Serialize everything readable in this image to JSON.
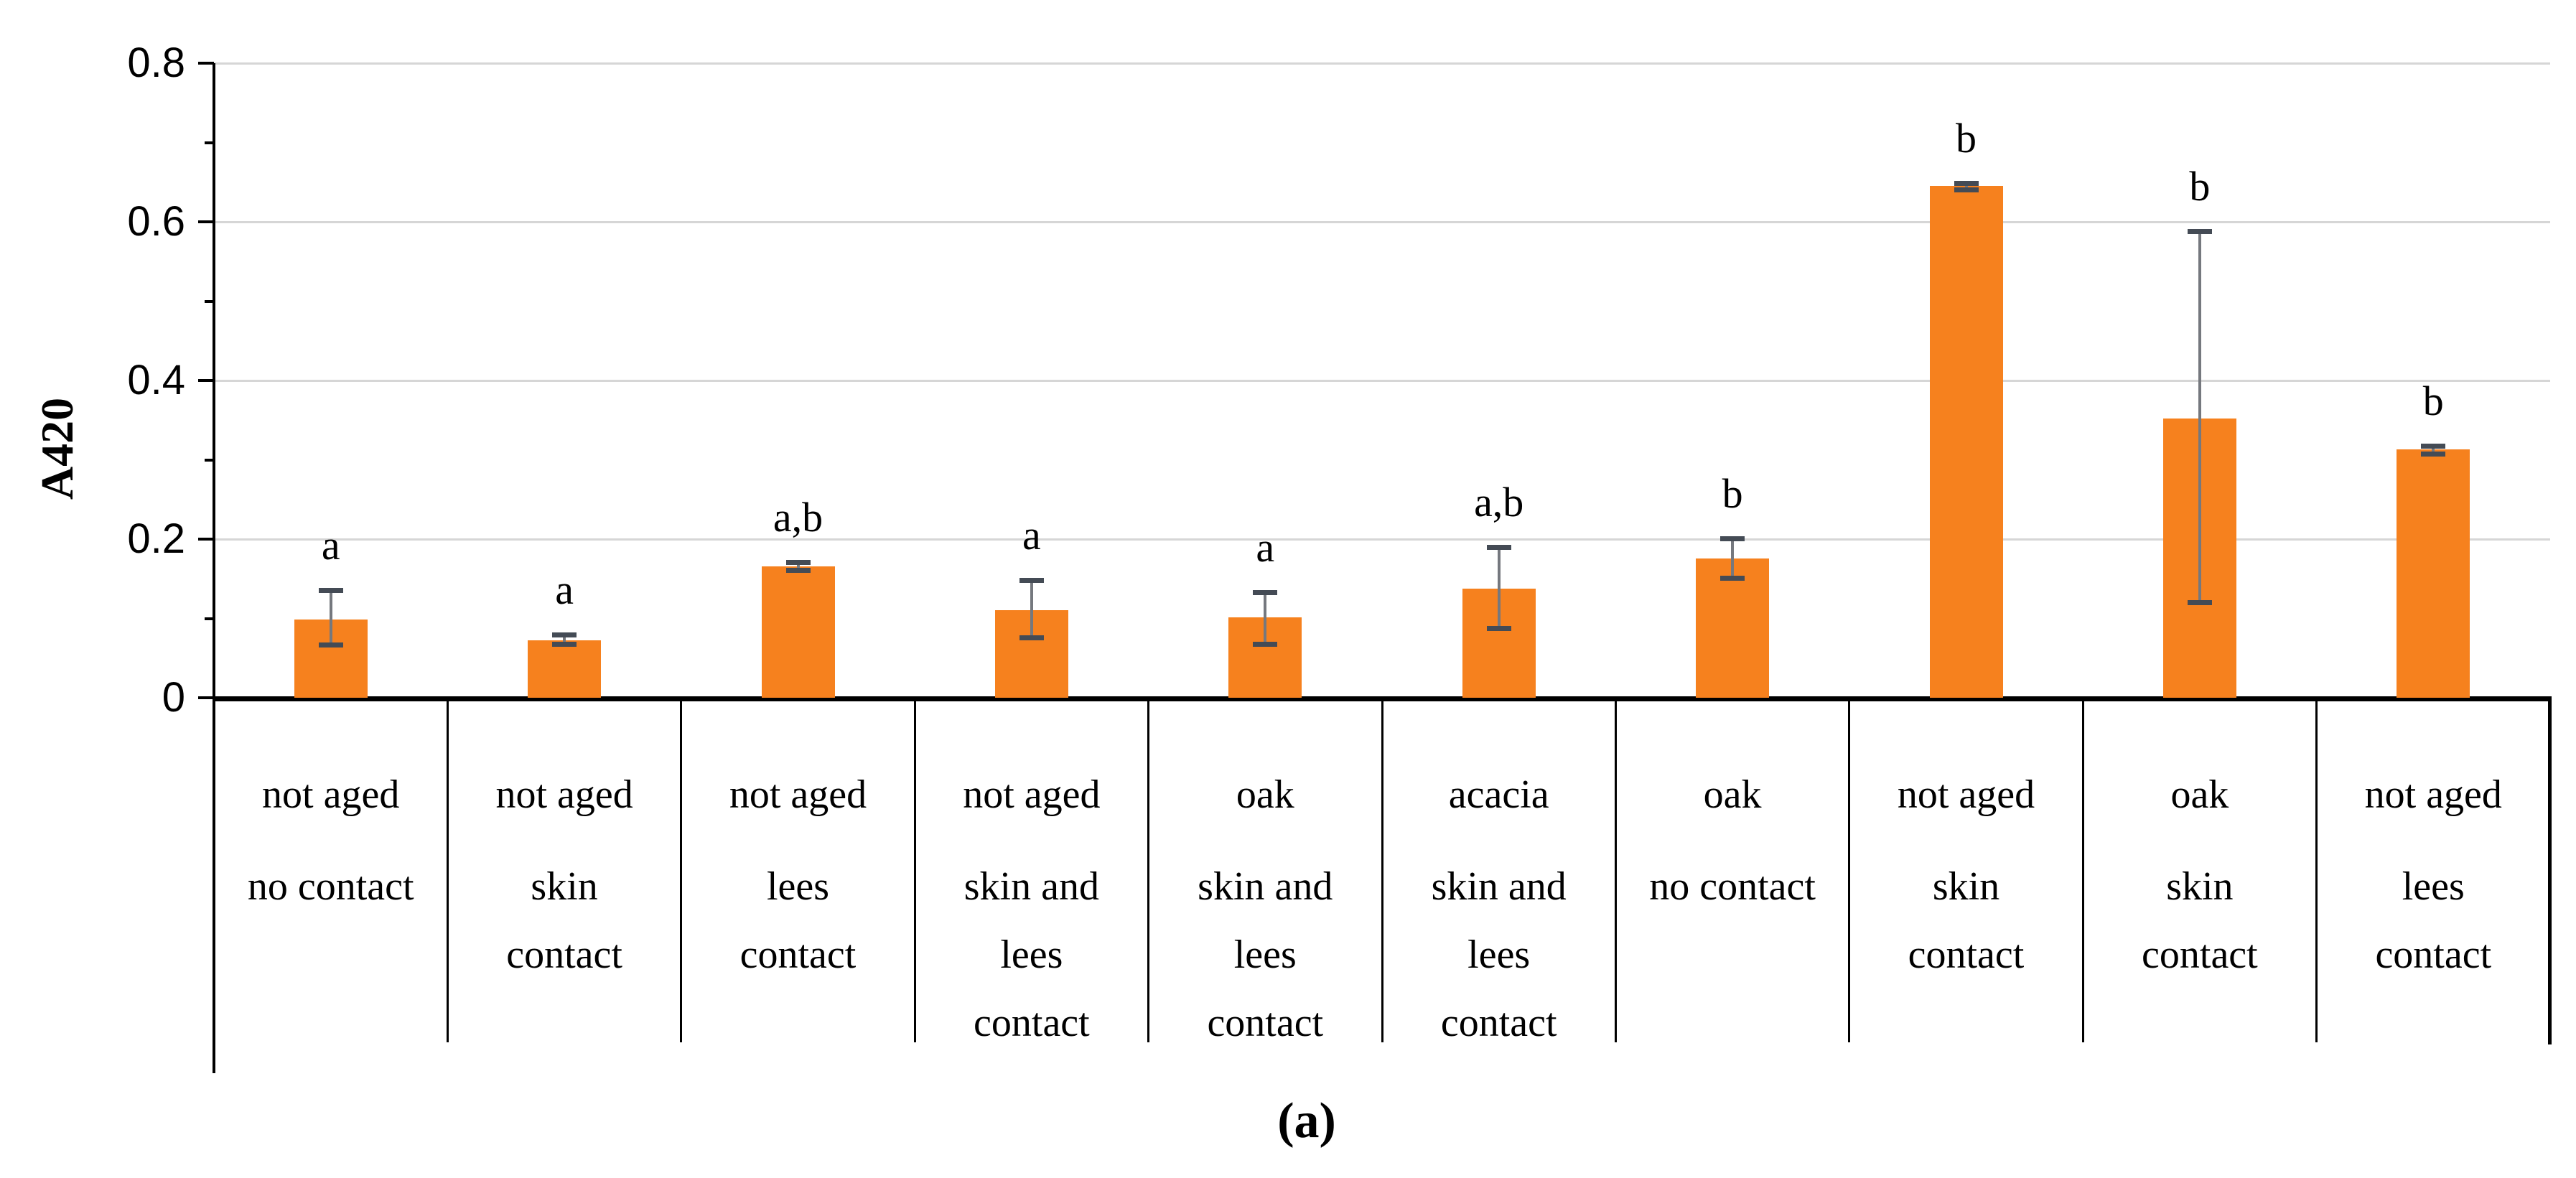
{
  "figure": {
    "caption": "(a)",
    "background": "#ffffff"
  },
  "chart_data": {
    "type": "bar",
    "title": "",
    "xlabel": "",
    "ylabel": "A420",
    "ylim": [
      0,
      0.8
    ],
    "yticks": [
      0,
      0.2,
      0.4,
      0.6,
      0.8
    ],
    "ytick_labels": [
      "0",
      "0.2",
      "0.4",
      "0.6",
      "0.8"
    ],
    "minor_tick_interval": 0.1,
    "grid": "horizontal-major",
    "legend": null,
    "bar_color": "#F6811E",
    "error_line_color": "#75787E",
    "error_cap_color": "#444B55",
    "gridline_color": "#D6D6D6",
    "categories": [
      {
        "aging": "not aged",
        "contact": "no contact",
        "contact_lines": [
          "no contact"
        ],
        "value": 0.099,
        "err_low": 0.067,
        "err_high": 0.136,
        "letter": "a"
      },
      {
        "aging": "not aged",
        "contact": "skin contact",
        "contact_lines": [
          "skin",
          "contact"
        ],
        "value": 0.072,
        "err_low": 0.068,
        "err_high": 0.08,
        "letter": "a"
      },
      {
        "aging": "not aged",
        "contact": "lees contact",
        "contact_lines": [
          "lees",
          "contact"
        ],
        "value": 0.166,
        "err_low": 0.161,
        "err_high": 0.171,
        "letter": "a,b"
      },
      {
        "aging": "not aged",
        "contact": "skin and lees contact",
        "contact_lines": [
          "skin and",
          "lees",
          "contact"
        ],
        "value": 0.11,
        "err_low": 0.076,
        "err_high": 0.148,
        "letter": "a"
      },
      {
        "aging": "oak",
        "contact": "skin and lees contact",
        "contact_lines": [
          "skin and",
          "lees",
          "contact"
        ],
        "value": 0.101,
        "err_low": 0.068,
        "err_high": 0.133,
        "letter": "a"
      },
      {
        "aging": "acacia",
        "contact": "skin and lees contact",
        "contact_lines": [
          "skin and",
          "lees",
          "contact"
        ],
        "value": 0.138,
        "err_low": 0.088,
        "err_high": 0.19,
        "letter": "a,b"
      },
      {
        "aging": "oak",
        "contact": "no contact",
        "contact_lines": [
          "no contact"
        ],
        "value": 0.176,
        "err_low": 0.151,
        "err_high": 0.201,
        "letter": "b"
      },
      {
        "aging": "not aged",
        "contact": "skin contact",
        "contact_lines": [
          "skin",
          "contact"
        ],
        "value": 0.645,
        "err_low": 0.641,
        "err_high": 0.649,
        "letter": "b"
      },
      {
        "aging": "oak",
        "contact": "skin contact",
        "contact_lines": [
          "skin",
          "contact"
        ],
        "value": 0.352,
        "err_low": 0.12,
        "err_high": 0.588,
        "letter": "b"
      },
      {
        "aging": "not aged",
        "contact": "lees contact",
        "contact_lines": [
          "lees",
          "contact"
        ],
        "value": 0.313,
        "err_low": 0.308,
        "err_high": 0.318,
        "letter": "b"
      }
    ]
  }
}
